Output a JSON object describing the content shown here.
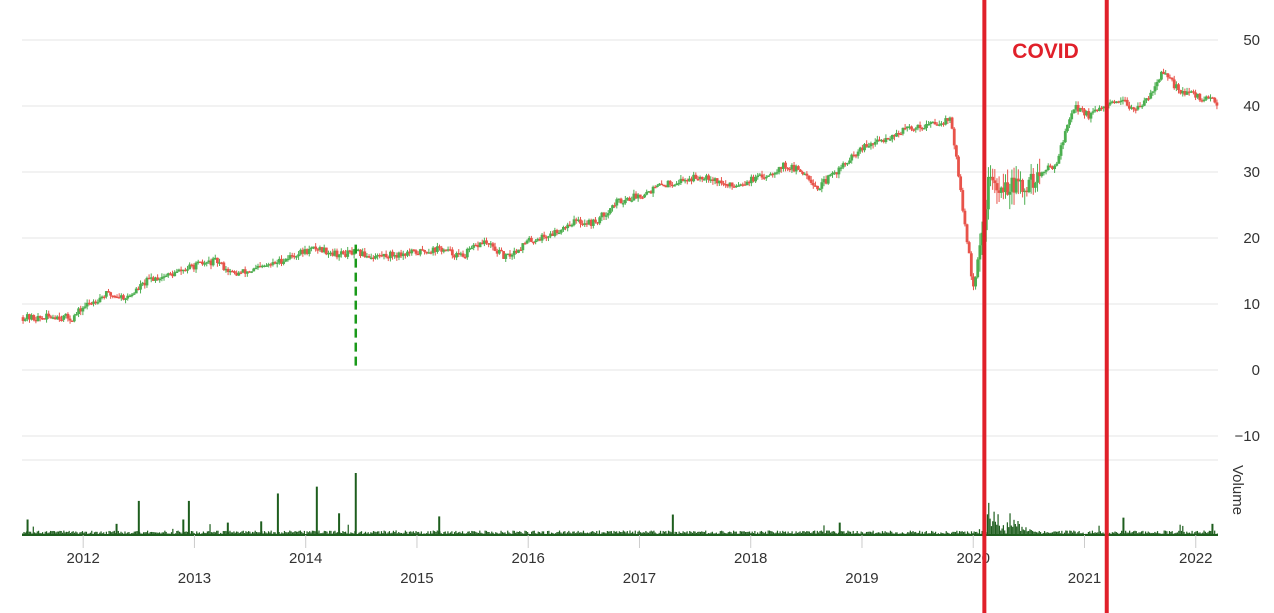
{
  "chart_data": {
    "type": "candlestick",
    "price_axis": {
      "ylim": [
        -10,
        50
      ],
      "ticks": [
        "50",
        "40",
        "30",
        "20",
        "10",
        "0",
        "−10"
      ],
      "tick_values": [
        50,
        40,
        30,
        20,
        10,
        0,
        -10
      ],
      "position": "right",
      "grid": true
    },
    "x_axis": {
      "xlim": [
        2011.45,
        2022.2
      ],
      "ticks": [
        {
          "label": "2012",
          "value": 2012.0,
          "row": 1
        },
        {
          "label": "2013",
          "value": 2013.0,
          "row": 2
        },
        {
          "label": "2014",
          "value": 2014.0,
          "row": 1
        },
        {
          "label": "2015",
          "value": 2015.0,
          "row": 2
        },
        {
          "label": "2016",
          "value": 2016.0,
          "row": 1
        },
        {
          "label": "2017",
          "value": 2017.0,
          "row": 2
        },
        {
          "label": "2018",
          "value": 2018.0,
          "row": 1
        },
        {
          "label": "2019",
          "value": 2019.0,
          "row": 2
        },
        {
          "label": "2020",
          "value": 2020.0,
          "row": 1
        },
        {
          "label": "2021",
          "value": 2021.0,
          "row": 2
        },
        {
          "label": "2022",
          "value": 2022.0,
          "row": 1
        }
      ]
    },
    "price_trend": {
      "x": [
        2011.45,
        2011.6,
        2011.75,
        2011.9,
        2012.0,
        2012.2,
        2012.4,
        2012.6,
        2012.8,
        2013.0,
        2013.2,
        2013.35,
        2013.5,
        2013.7,
        2013.9,
        2014.1,
        2014.3,
        2014.45,
        2014.6,
        2014.8,
        2015.0,
        2015.2,
        2015.4,
        2015.6,
        2015.8,
        2016.0,
        2016.2,
        2016.4,
        2016.6,
        2016.8,
        2017.0,
        2017.2,
        2017.4,
        2017.6,
        2017.8,
        2018.0,
        2018.1,
        2018.3,
        2018.5,
        2018.6,
        2018.75,
        2018.85,
        2019.0,
        2019.2,
        2019.4,
        2019.6,
        2019.8,
        2020.0,
        2020.08,
        2020.15,
        2020.22,
        2020.3,
        2020.45,
        2020.6,
        2020.75,
        2020.9,
        2021.05,
        2021.2,
        2021.35,
        2021.5,
        2021.7,
        2021.85,
        2022.0,
        2022.1,
        2022.2
      ],
      "close": [
        8,
        7.8,
        8.2,
        7.8,
        9.5,
        11.5,
        11,
        13.8,
        14.5,
        15.8,
        16.5,
        14.5,
        15,
        16,
        17.5,
        18.5,
        17.5,
        17.8,
        17.2,
        17.5,
        17.8,
        18.4,
        17.2,
        19.5,
        17,
        19.5,
        20.5,
        22.5,
        22.3,
        25.5,
        26.5,
        28,
        28.8,
        29.5,
        27.8,
        28.8,
        29.2,
        31,
        29.8,
        27.5,
        29.8,
        31.2,
        33.5,
        35,
        36.5,
        37.2,
        38,
        12.5,
        20,
        30,
        26.5,
        28,
        27.5,
        29.5,
        31.5,
        40,
        38.5,
        40,
        40.5,
        39.5,
        45,
        42.5,
        41.5,
        41,
        40.5
      ],
      "colors": {
        "up": "#4caf50",
        "down": "#e8534a"
      }
    },
    "anomaly": {
      "x": 2014.45,
      "high": 19,
      "low": 0,
      "color": "#1a9a1a"
    },
    "covid_band": {
      "start": 2020.1,
      "end": 2021.2,
      "label": "COVID",
      "color": "#e0202a"
    },
    "volume": {
      "label": "Volume",
      "color": "#1e5e1e",
      "spikes": [
        {
          "x": 2011.5,
          "v": 0.25
        },
        {
          "x": 2012.3,
          "v": 0.18
        },
        {
          "x": 2012.5,
          "v": 0.55
        },
        {
          "x": 2012.95,
          "v": 0.55
        },
        {
          "x": 2012.9,
          "v": 0.25
        },
        {
          "x": 2013.3,
          "v": 0.2
        },
        {
          "x": 2013.6,
          "v": 0.22
        },
        {
          "x": 2013.75,
          "v": 0.67
        },
        {
          "x": 2014.1,
          "v": 0.78
        },
        {
          "x": 2014.3,
          "v": 0.35
        },
        {
          "x": 2014.45,
          "v": 1.0
        },
        {
          "x": 2015.2,
          "v": 0.3
        },
        {
          "x": 2017.3,
          "v": 0.33
        },
        {
          "x": 2018.8,
          "v": 0.2
        },
        {
          "x": 2021.35,
          "v": 0.28
        },
        {
          "x": 2022.15,
          "v": 0.18
        }
      ],
      "covid_cluster": {
        "start": 2020.12,
        "end": 2020.55,
        "peak": 0.62
      }
    }
  }
}
